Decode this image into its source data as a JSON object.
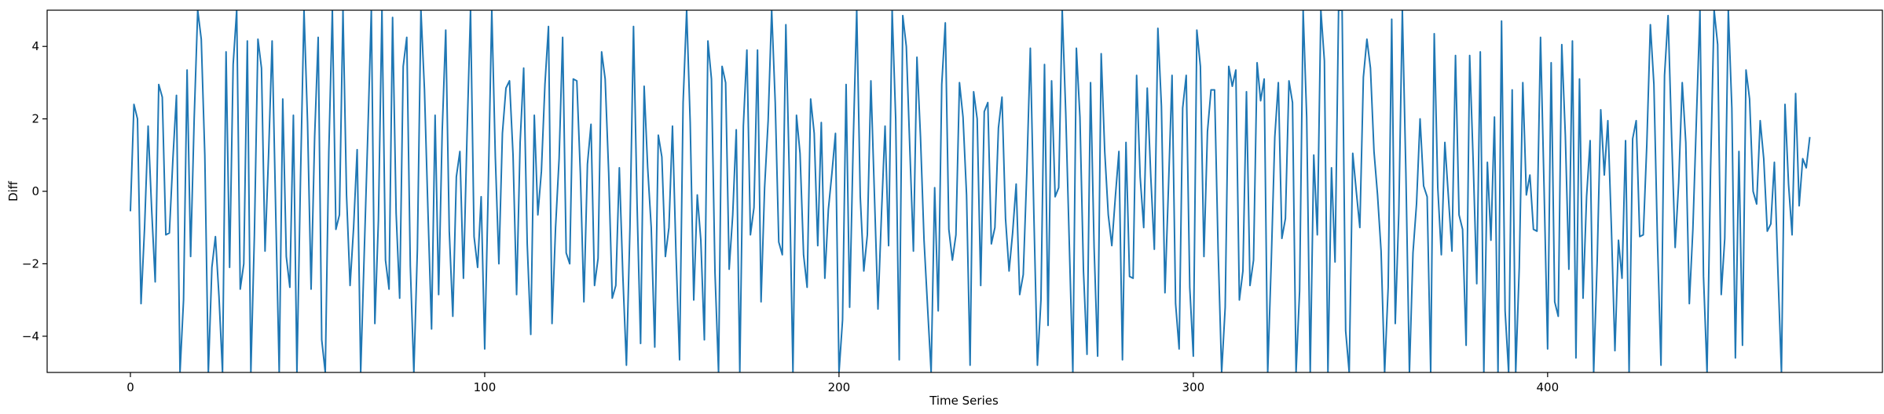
{
  "chart_data": {
    "type": "line",
    "title": "",
    "xlabel": "Time Series",
    "ylabel": "Diff",
    "xlim": [
      -23.5,
      494.5
    ],
    "ylim": [
      -5,
      5
    ],
    "xticks": [
      0,
      100,
      200,
      300,
      400
    ],
    "yticks": [
      -4,
      -2,
      0,
      2,
      4
    ],
    "xtick_labels": [
      "0",
      "100",
      "200",
      "300",
      "400"
    ],
    "ytick_labels": [
      "−4",
      "−2",
      "0",
      "2",
      "4"
    ],
    "grid": false,
    "legend": "none",
    "series": [
      {
        "color": "#1f77b4",
        "values": [
          -0.55,
          2.4,
          2.0,
          -3.1,
          -1.0,
          1.8,
          -0.5,
          -2.5,
          2.95,
          2.6,
          -1.2,
          -1.15,
          0.9,
          2.65,
          -5.0,
          -3.0,
          3.35,
          -1.8,
          2.0,
          5.0,
          4.2,
          1.0,
          -5.0,
          -2.1,
          -1.25,
          -2.9,
          -5.0,
          3.85,
          -2.1,
          3.5,
          5.0,
          -2.7,
          -2.0,
          4.15,
          -5.0,
          -1.2,
          4.2,
          3.4,
          -1.65,
          1.0,
          4.15,
          -0.5,
          -5.0,
          2.55,
          -1.8,
          -2.65,
          2.1,
          -5.0,
          0.3,
          5.0,
          1.9,
          -2.7,
          1.5,
          4.25,
          -4.1,
          -5.0,
          1.1,
          5.0,
          -1.05,
          -0.65,
          5.0,
          -0.1,
          -2.6,
          -1.0,
          1.15,
          -5.0,
          -1.7,
          1.55,
          5.0,
          -3.65,
          -0.8,
          5.0,
          -1.9,
          -2.7,
          4.8,
          -0.6,
          -2.95,
          3.45,
          4.25,
          -2.05,
          -5.0,
          -1.6,
          5.0,
          2.8,
          -0.6,
          -3.8,
          2.1,
          -2.85,
          1.65,
          4.45,
          -1.1,
          -3.45,
          0.4,
          1.1,
          -2.4,
          1.5,
          5.0,
          -1.25,
          -2.1,
          -0.15,
          -4.35,
          0.1,
          5.0,
          0.95,
          -2.0,
          1.6,
          2.85,
          3.05,
          1.0,
          -2.85,
          1.35,
          3.4,
          -1.45,
          -3.95,
          2.1,
          -0.65,
          0.55,
          2.95,
          4.55,
          -3.65,
          -1.0,
          0.9,
          4.25,
          -1.7,
          -2.0,
          3.1,
          3.05,
          0.5,
          -3.05,
          0.75,
          1.85,
          -2.6,
          -1.85,
          3.85,
          3.1,
          0.5,
          -2.95,
          -2.6,
          0.65,
          -2.35,
          -4.8,
          -1.0,
          4.55,
          -0.35,
          -4.2,
          2.9,
          0.65,
          -1.0,
          -4.3,
          1.55,
          0.95,
          -1.8,
          -1.0,
          1.8,
          -1.75,
          -4.65,
          2.45,
          5.0,
          1.9,
          -3.0,
          -0.1,
          -1.35,
          -4.1,
          4.15,
          3.1,
          -2.25,
          -5.0,
          3.45,
          3.0,
          -2.15,
          -0.65,
          1.7,
          -5.0,
          1.8,
          3.9,
          -1.2,
          -0.45,
          3.9,
          -3.05,
          0.1,
          1.95,
          5.0,
          2.45,
          -1.4,
          -1.75,
          4.6,
          0.35,
          -5.0,
          2.1,
          1.05,
          -1.75,
          -2.65,
          2.55,
          1.6,
          -1.5,
          1.9,
          -2.4,
          -0.5,
          0.5,
          1.6,
          -5.0,
          -3.55,
          2.95,
          -3.2,
          1.3,
          5.0,
          -0.15,
          -2.2,
          -1.2,
          3.05,
          -0.1,
          -3.25,
          -0.6,
          1.8,
          -1.5,
          5.0,
          2.0,
          -4.65,
          4.85,
          4.0,
          1.15,
          -1.65,
          3.7,
          1.5,
          -1.35,
          -3.2,
          -5.0,
          0.1,
          -3.3,
          2.95,
          4.65,
          -1.05,
          -1.9,
          -1.2,
          3.0,
          2.05,
          -0.1,
          -4.8,
          2.75,
          2.0,
          -2.6,
          2.2,
          2.45,
          -1.45,
          -1.0,
          1.75,
          2.6,
          -0.75,
          -2.2,
          -1.15,
          0.2,
          -2.85,
          -2.3,
          0.5,
          3.95,
          -0.65,
          -4.8,
          -3.0,
          3.5,
          -3.7,
          3.05,
          -0.15,
          0.1,
          5.0,
          2.15,
          -1.45,
          -5.0,
          3.95,
          2.05,
          -2.2,
          -4.5,
          3.0,
          -1.55,
          -4.55,
          3.8,
          1.1,
          -0.65,
          -1.5,
          -0.15,
          1.1,
          -4.65,
          1.35,
          -2.35,
          -2.4,
          3.2,
          0.4,
          -1.0,
          2.85,
          0.4,
          -1.6,
          4.5,
          2.35,
          -2.8,
          0.15,
          3.2,
          -3.1,
          -4.35,
          2.3,
          3.2,
          -2.65,
          -4.55,
          4.45,
          3.45,
          -1.8,
          1.65,
          2.8,
          2.8,
          -1.6,
          -5.0,
          -3.2,
          3.45,
          2.9,
          3.35,
          -3.0,
          -2.2,
          2.75,
          -2.6,
          -1.9,
          3.55,
          2.5,
          3.1,
          -5.0,
          -1.95,
          1.5,
          3.0,
          -1.3,
          -0.75,
          3.05,
          2.45,
          -5.0,
          -2.75,
          5.0,
          2.05,
          -5.0,
          1.0,
          -1.2,
          5.0,
          3.6,
          -5.0,
          0.65,
          -1.95,
          5.0,
          5.0,
          -3.85,
          -5.0,
          1.05,
          0.0,
          -1.0,
          3.15,
          4.2,
          3.4,
          1.1,
          -0.1,
          -1.65,
          -5.0,
          -2.65,
          4.75,
          -3.65,
          -0.6,
          5.0,
          0.5,
          -5.0,
          -1.7,
          -0.35,
          2.0,
          0.15,
          -0.15,
          -5.0,
          4.35,
          0.1,
          -1.75,
          1.35,
          -0.15,
          -1.65,
          3.75,
          -0.65,
          -1.05,
          -4.25,
          3.75,
          0.8,
          -2.55,
          3.85,
          -5.0,
          0.8,
          -1.35,
          2.05,
          -5.0,
          4.7,
          -3.3,
          -5.0,
          2.8,
          -5.0,
          -2.1,
          3.0,
          -0.1,
          0.45,
          -1.05,
          -1.1,
          4.25,
          0.1,
          -4.35,
          3.55,
          -3.05,
          -3.45,
          4.05,
          1.55,
          -2.15,
          4.15,
          -4.6,
          3.1,
          -2.95,
          -0.15,
          1.4,
          -5.0,
          -1.9,
          2.25,
          0.45,
          1.95,
          -1.0,
          -4.4,
          -1.35,
          -2.4,
          1.4,
          -5.0,
          1.45,
          1.95,
          -1.25,
          -1.2,
          1.3,
          4.6,
          2.95,
          -1.35,
          -4.8,
          3.2,
          4.85,
          1.5,
          -1.55,
          0.25,
          3.0,
          1.35,
          -3.1,
          -1.05,
          2.0,
          5.0,
          -2.35,
          -5.0,
          0.6,
          5.0,
          4.05,
          -2.85,
          -1.3,
          5.0,
          2.3,
          -4.6,
          1.1,
          -4.25,
          3.35,
          2.55,
          0.0,
          -0.35,
          1.95,
          0.9,
          -1.1,
          -0.9,
          0.8,
          -2.2,
          -5.0,
          2.4,
          0.2,
          -1.2,
          2.7,
          -0.4,
          0.9,
          0.65,
          1.5
        ]
      }
    ]
  }
}
